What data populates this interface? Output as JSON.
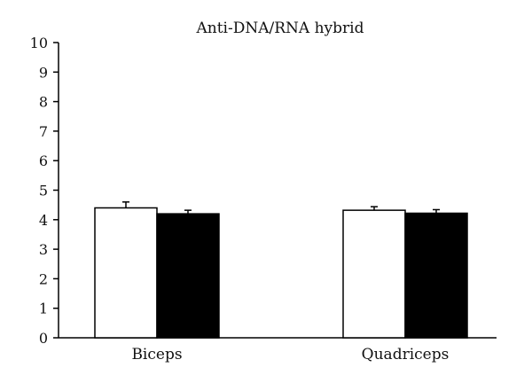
{
  "chart_data": {
    "type": "bar",
    "title": "Anti-DNA/RNA hybrid",
    "xlabel": "",
    "ylabel": "",
    "categories": [
      "Biceps",
      "Quadriceps"
    ],
    "ylim": [
      0,
      10
    ],
    "yticks": [
      "0",
      "1",
      "2",
      "3",
      "4",
      "5",
      "6",
      "7",
      "8",
      "9",
      "10"
    ],
    "grid": false,
    "legend": "none",
    "series": [
      {
        "values": [
          4.4,
          4.32
        ],
        "errors": [
          0.2,
          0.12
        ],
        "fill": "#ffffff"
      },
      {
        "values": [
          4.2,
          4.22
        ],
        "errors": [
          0.12,
          0.12
        ],
        "fill": "#000000"
      }
    ]
  }
}
